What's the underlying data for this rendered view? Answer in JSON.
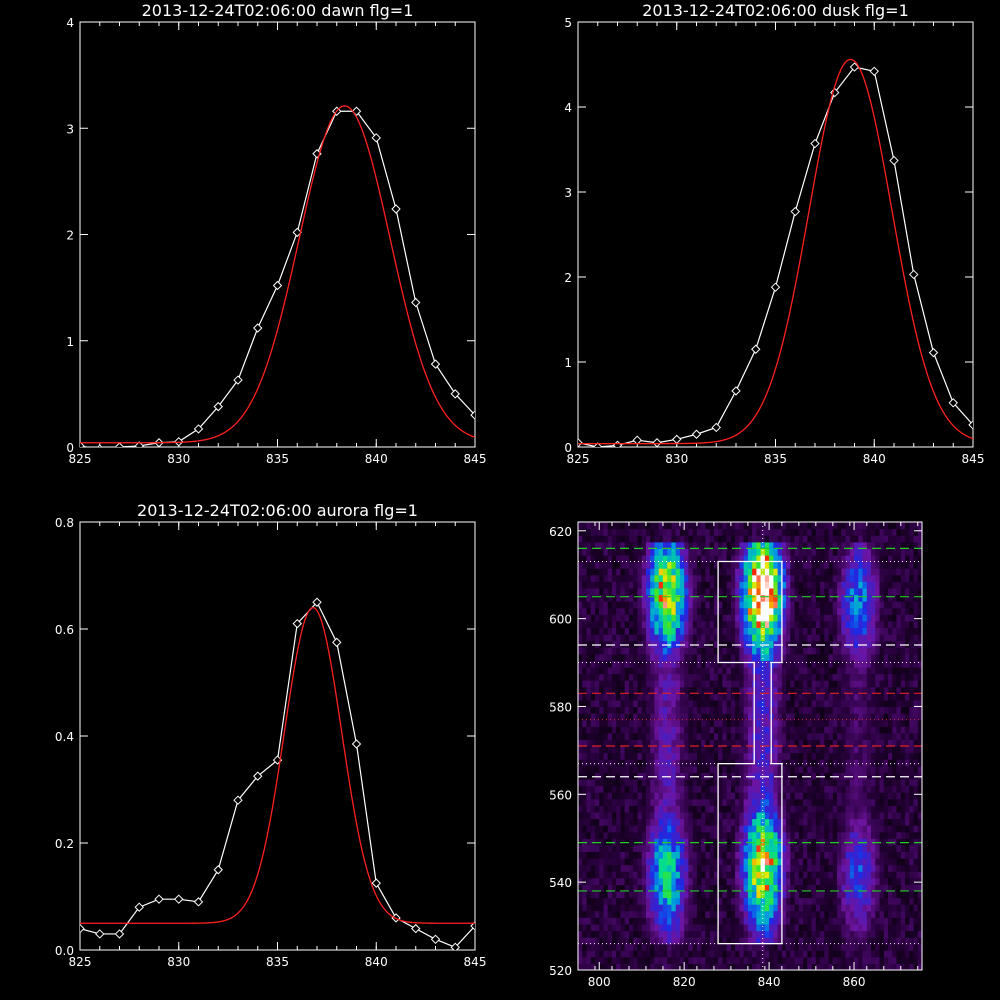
{
  "colors": {
    "background": "#000000",
    "axes": "#ffffff",
    "data_line": "#ffffff",
    "fit_line": "#ff2020",
    "green_dash": "#22cc22",
    "red_dash": "#dd2222",
    "white_dash": "#ffffff"
  },
  "chart_data": [
    {
      "id": "dawn",
      "type": "line",
      "title": "2013-12-24T02:06:00 dawn flg=1",
      "xlim": [
        825,
        845
      ],
      "ylim": [
        0,
        4
      ],
      "x_ticks": [
        825,
        830,
        835,
        840,
        845
      ],
      "x_tick_labels": [
        "825",
        "830",
        "835",
        "840",
        "845"
      ],
      "y_ticks": [
        0,
        1,
        2,
        3,
        4
      ],
      "y_tick_labels": [
        "0",
        "1",
        "2",
        "3",
        "4"
      ],
      "series": [
        {
          "role": "measured",
          "color": "#ffffff",
          "marker": "diamond",
          "x": [
            825,
            826,
            827,
            828,
            829,
            830,
            831,
            832,
            833,
            834,
            835,
            836,
            837,
            838,
            839,
            840,
            841,
            842,
            843,
            844,
            845
          ],
          "y": [
            0.01,
            -0.02,
            0.0,
            0.01,
            0.04,
            0.05,
            0.17,
            0.38,
            0.63,
            1.12,
            1.52,
            2.02,
            2.76,
            3.16,
            3.16,
            2.91,
            2.24,
            1.36,
            0.78,
            0.5,
            0.3
          ]
        },
        {
          "role": "fit",
          "color": "#ff2020",
          "kind": "gaussian",
          "amplitude": 3.17,
          "center": 838.4,
          "sigma": 2.3,
          "baseline": 0.04
        }
      ]
    },
    {
      "id": "dusk",
      "type": "line",
      "title": "2013-12-24T02:06:00 dusk flg=1",
      "xlim": [
        825,
        845
      ],
      "ylim": [
        0,
        5
      ],
      "x_ticks": [
        825,
        830,
        835,
        840,
        845
      ],
      "x_tick_labels": [
        "825",
        "830",
        "835",
        "840",
        "845"
      ],
      "y_ticks": [
        0,
        1,
        2,
        3,
        4,
        5
      ],
      "y_tick_labels": [
        "0",
        "1",
        "2",
        "3",
        "4",
        "5"
      ],
      "series": [
        {
          "role": "measured",
          "color": "#ffffff",
          "marker": "diamond",
          "x": [
            825,
            826,
            827,
            828,
            829,
            830,
            831,
            832,
            833,
            834,
            835,
            836,
            837,
            838,
            839,
            840,
            841,
            842,
            843,
            844,
            845
          ],
          "y": [
            0.05,
            0.0,
            0.02,
            0.08,
            0.05,
            0.09,
            0.15,
            0.23,
            0.66,
            1.15,
            1.88,
            2.77,
            3.57,
            4.17,
            4.47,
            4.42,
            3.37,
            2.03,
            1.11,
            0.52,
            0.26
          ]
        },
        {
          "role": "fit",
          "color": "#ff2020",
          "kind": "gaussian",
          "amplitude": 4.52,
          "center": 838.8,
          "sigma": 2.1,
          "baseline": 0.04
        }
      ]
    },
    {
      "id": "aurora",
      "type": "line",
      "title": "2013-12-24T02:06:00 aurora flg=1",
      "xlim": [
        825,
        845
      ],
      "ylim": [
        0,
        0.8
      ],
      "x_ticks": [
        825,
        830,
        835,
        840,
        845
      ],
      "x_tick_labels": [
        "825",
        "830",
        "835",
        "840",
        "845"
      ],
      "y_ticks": [
        0,
        0.2,
        0.4,
        0.6,
        0.8
      ],
      "y_tick_labels": [
        "0.0",
        "0.2",
        "0.4",
        "0.6",
        "0.8"
      ],
      "series": [
        {
          "role": "measured",
          "color": "#ffffff",
          "marker": "diamond",
          "x": [
            825,
            826,
            827,
            828,
            829,
            830,
            831,
            832,
            833,
            834,
            835,
            836,
            837,
            838,
            839,
            840,
            841,
            842,
            843,
            844,
            845
          ],
          "y": [
            0.04,
            0.03,
            0.03,
            0.08,
            0.095,
            0.095,
            0.09,
            0.15,
            0.28,
            0.325,
            0.355,
            0.61,
            0.65,
            0.575,
            0.385,
            0.125,
            0.06,
            0.04,
            0.02,
            0.005,
            0.045
          ]
        },
        {
          "role": "fit",
          "color": "#ff2020",
          "kind": "gaussian",
          "amplitude": 0.59,
          "center": 836.8,
          "sigma": 1.45,
          "baseline": 0.05
        }
      ]
    },
    {
      "id": "spectrogram",
      "type": "heatmap",
      "title": "",
      "xlim": [
        795,
        876
      ],
      "ylim": [
        520,
        622
      ],
      "x_ticks": [
        800,
        820,
        840,
        860
      ],
      "x_tick_labels": [
        "800",
        "820",
        "840",
        "860"
      ],
      "y_ticks": [
        520,
        540,
        560,
        580,
        600,
        620
      ],
      "y_tick_labels": [
        "520",
        "540",
        "560",
        "580",
        "600",
        "620"
      ],
      "colormap": "rainbow (black-purple-blue-cyan-green-yellow-red-white)",
      "bright_columns": [
        {
          "x_center": 816,
          "half_width": 3.5,
          "y_range": [
            526,
            616
          ],
          "peaks": [
            {
              "y": 605,
              "value": 0.72
            },
            {
              "y": 541,
              "value": 0.5
            }
          ],
          "floor": 0.28
        },
        {
          "x_center": 838.5,
          "half_width": 3.5,
          "y_range": [
            526,
            616
          ],
          "peaks": [
            {
              "y": 605,
              "value": 1.0
            },
            {
              "y": 543,
              "value": 0.72
            }
          ],
          "floor": 0.35
        },
        {
          "x_center": 861,
          "half_width": 3.5,
          "y_range": [
            526,
            616
          ],
          "peaks": [
            {
              "y": 603,
              "value": 0.4
            },
            {
              "y": 541,
              "value": 0.32
            }
          ],
          "floor": 0.18
        }
      ],
      "vertical_dotted_line_x": 838.5,
      "dashed_lines": [
        {
          "y": 616,
          "color": "#22cc22"
        },
        {
          "y": 605,
          "color": "#22cc22"
        },
        {
          "y": 594,
          "color": "#ffffff"
        },
        {
          "y": 583,
          "color": "#dd2222"
        },
        {
          "y": 571,
          "color": "#dd2222"
        },
        {
          "y": 564,
          "color": "#ffffff"
        },
        {
          "y": 549,
          "color": "#22cc22"
        },
        {
          "y": 538,
          "color": "#22cc22"
        }
      ],
      "dotted_lines": [
        {
          "y": 613,
          "color": "#ffffff"
        },
        {
          "y": 590,
          "color": "#ffffff"
        },
        {
          "y": 577,
          "color": "#dd2222"
        },
        {
          "y": 567,
          "color": "#ffffff"
        },
        {
          "y": 526,
          "color": "#ffffff"
        }
      ],
      "selection_outline": [
        [
          828,
          613
        ],
        [
          843,
          613
        ],
        [
          843,
          590
        ],
        [
          840.5,
          590
        ],
        [
          840.5,
          567
        ],
        [
          843,
          567
        ],
        [
          843,
          526
        ],
        [
          828,
          526
        ],
        [
          828,
          567
        ],
        [
          836.5,
          567
        ],
        [
          836.5,
          590
        ],
        [
          828,
          590
        ]
      ]
    }
  ]
}
